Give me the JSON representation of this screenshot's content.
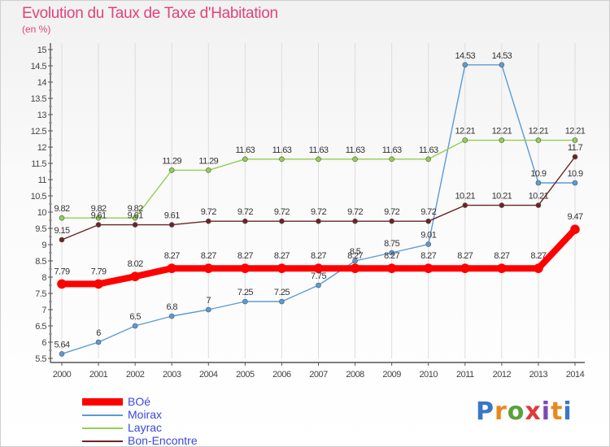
{
  "chart_data": {
    "type": "line",
    "title": "Evolution du Taux de Taxe d'Habitation",
    "subtitle": "(en %)",
    "x": [
      "2000",
      "2001",
      "2002",
      "2003",
      "2004",
      "2005",
      "2006",
      "2007",
      "2008",
      "2009",
      "2010",
      "2011",
      "2012",
      "2013",
      "2014"
    ],
    "yticks": [
      "5.5",
      "6",
      "6.5",
      "7",
      "7.5",
      "8",
      "8.5",
      "9",
      "9.5",
      "10",
      "10.5",
      "11",
      "11.5",
      "12",
      "12.5",
      "13",
      "13.5",
      "14",
      "14.5",
      "15"
    ],
    "ylim": [
      5.5,
      15
    ],
    "grid": "vertical",
    "legend_position": "bottom-left",
    "series": [
      {
        "name": "BOé",
        "color": "#ff0000",
        "values": [
          7.79,
          7.79,
          8.02,
          8.27,
          8.27,
          8.27,
          8.27,
          8.27,
          8.27,
          8.27,
          8.27,
          8.27,
          8.27,
          8.27,
          9.47
        ],
        "labels": [
          "7.79",
          "7.79",
          "8.02",
          "8.27",
          "8.27",
          "8.27",
          "8.27",
          "8.27",
          "8.27",
          "8.27",
          "8.27",
          "8.27",
          "8.27",
          "8.27",
          "9.47"
        ]
      },
      {
        "name": "Moirax",
        "color": "#5b9bd5",
        "values": [
          5.64,
          6,
          6.5,
          6.8,
          7,
          7.25,
          7.25,
          7.75,
          8.5,
          8.75,
          9.01,
          14.53,
          14.53,
          10.9,
          10.9
        ],
        "labels": [
          "5.64",
          "6",
          "6.5",
          "6.8",
          "7",
          "7.25",
          "7.25",
          "7.75",
          "8.5",
          "8.75",
          "9.01",
          "14.53",
          "14.53",
          "10.9",
          "10.9"
        ]
      },
      {
        "name": "Layrac",
        "color": "#92d050",
        "values": [
          9.82,
          9.82,
          9.82,
          11.29,
          11.29,
          11.63,
          11.63,
          11.63,
          11.63,
          11.63,
          11.63,
          12.21,
          12.21,
          12.21,
          12.21
        ],
        "labels": [
          "9.82",
          "9.82",
          "9.82",
          "11.29",
          "11.29",
          "11.63",
          "11.63",
          "11.63",
          "11.63",
          "11.63",
          "11.63",
          "12.21",
          "12.21",
          "12.21",
          "12.21"
        ]
      },
      {
        "name": "Bon-Encontre",
        "color": "#6b2424",
        "values": [
          9.15,
          9.61,
          9.61,
          9.61,
          9.72,
          9.72,
          9.72,
          9.72,
          9.72,
          9.72,
          9.72,
          10.21,
          10.21,
          10.21,
          11.7
        ],
        "labels": [
          "9.15",
          "9.61",
          "9.61",
          "9.61",
          "9.72",
          "9.72",
          "9.72",
          "9.72",
          "9.72",
          "9.72",
          "9.72",
          "10.21",
          "10.21",
          "10.21",
          "11.7"
        ]
      }
    ]
  },
  "legend": {
    "items": [
      "BOé",
      "Moirax",
      "Layrac",
      "Bon-Encontre"
    ]
  },
  "logo": {
    "letters": [
      "P",
      "r",
      "o",
      "x",
      "i",
      "t",
      "i"
    ],
    "colors": [
      "#3a76c8",
      "#e8891c",
      "#5aa13c",
      "#e03a3a",
      "#7a4bb5",
      "#e8891c",
      "#3a76c8"
    ]
  }
}
